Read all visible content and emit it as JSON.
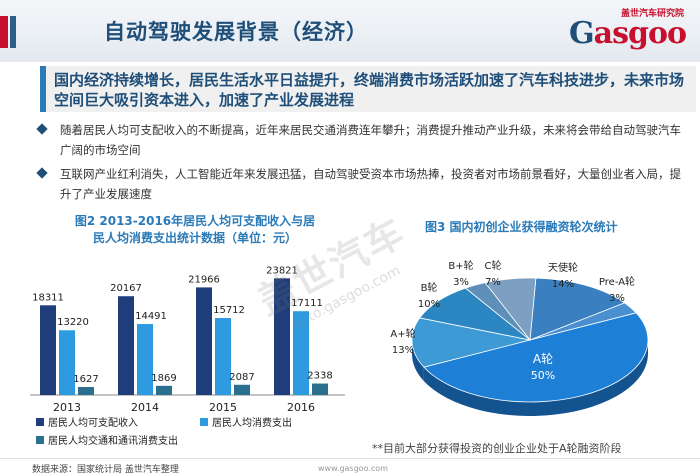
{
  "header": {
    "title": "自动驾驶发展背景（经济）",
    "logo_small": "盖世汽车研究院",
    "logo_text_prefix": "G",
    "logo_text_rest": "asgoo"
  },
  "highlight": {
    "text": "国内经济持续增长，居民生活水平日益提升，终端消费市场活跃加速了汽车科技进步，未来市场空间巨大吸引资本进入，加速了产业发展进程"
  },
  "bullets": [
    "随着居民人均可支配收入的不断提高，近年来居民交通消费连年攀升；消费提升推动产业升级，未来将会带给自动驾驶汽车广阔的市场空间",
    "互联网产业红利消失，人工智能近年来发展迅猛，自动驾驶受资本市场热捧，投资者对市场前景看好，大量创业者入局，提升了产业发展速度"
  ],
  "chart_data": [
    {
      "type": "bar",
      "title": "图2 2013-2016年居民人均可支配收入与居民人均消费支出统计数据（单位：元）",
      "categories": [
        "2013",
        "2014",
        "2015",
        "2016"
      ],
      "series": [
        {
          "name": "居民人均可支配收入",
          "values": [
            18311,
            20167,
            21966,
            23821
          ],
          "color": "#1f3d7a"
        },
        {
          "name": "居民人均消费支出",
          "values": [
            13220,
            14491,
            15712,
            17111
          ],
          "color": "#2e9be0"
        },
        {
          "name": "居民人均交通和通讯消费支出",
          "values": [
            1627,
            1869,
            2087,
            2338
          ],
          "color": "#2b6f8e"
        }
      ],
      "legend": "bottom",
      "grid": false
    },
    {
      "type": "pie",
      "title": "图3 国内初创企业获得融资轮次统计",
      "slices": [
        {
          "name": "天使轮",
          "label": "14%",
          "value": 14,
          "color": "#3a7fc0"
        },
        {
          "name": "Pre-A轮",
          "label": "3%",
          "value": 3,
          "color": "#4a8fcf"
        },
        {
          "name": "A轮",
          "label": "50%",
          "value": 50,
          "color": "#1e7fd6"
        },
        {
          "name": "A+轮",
          "label": "13%",
          "value": 13,
          "color": "#3e9ad4"
        },
        {
          "name": "B轮",
          "label": "10%",
          "value": 10,
          "color": "#2c86c2"
        },
        {
          "name": "B+轮",
          "label": "3%",
          "value": 3,
          "color": "#5d8fb8"
        },
        {
          "name": "C轮",
          "label": "7%",
          "value": 7,
          "color": "#7d9fc2"
        }
      ]
    }
  ],
  "footnote": "**目前大部分获得投资的创业企业处于A轮融资阶段",
  "source": "数据来源：国家统计局 盖世汽车整理",
  "watermark": "盖世汽车",
  "watermark_url": "auto.gasgoo.com",
  "footer_url": "www.gasgoo.com"
}
